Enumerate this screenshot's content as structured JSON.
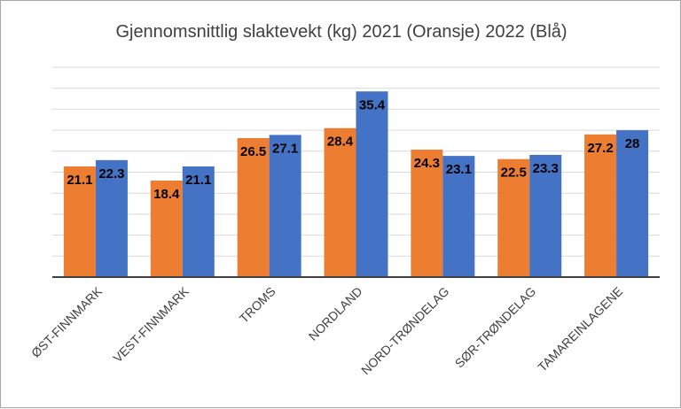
{
  "chart_data": {
    "type": "bar",
    "title": "Gjennomsnittlig slaktevekt (kg) 2021 (Oransje) 2022 (Blå)",
    "xlabel": "",
    "ylabel": "",
    "ylim": [
      0,
      40
    ],
    "grid": true,
    "legend": "none",
    "categories": [
      "ØST-FINNMARK",
      "VEST-FINNMARK",
      "TROMS",
      "NORDLAND",
      "NORD-TRØNDELAG",
      "SØR-TRØNDELAG",
      "TAMAREINLAGENE"
    ],
    "series": [
      {
        "values": [
          21.1,
          18.4,
          26.5,
          28.4,
          24.3,
          22.5,
          27.2
        ],
        "labels": [
          "21.1",
          "18.4",
          "26.5",
          "28.4",
          "24.3",
          "22.5",
          "27.2"
        ],
        "color": "#ED7D31"
      },
      {
        "values": [
          22.3,
          21.1,
          27.1,
          35.4,
          23.1,
          23.3,
          28
        ],
        "labels": [
          "22.3",
          "21.1",
          "27.1",
          "35.4",
          "23.1",
          "23.3",
          "28"
        ],
        "color": "#4472C4"
      }
    ],
    "gridline_color": "#d9d9d9",
    "axis_color": "#404040"
  }
}
